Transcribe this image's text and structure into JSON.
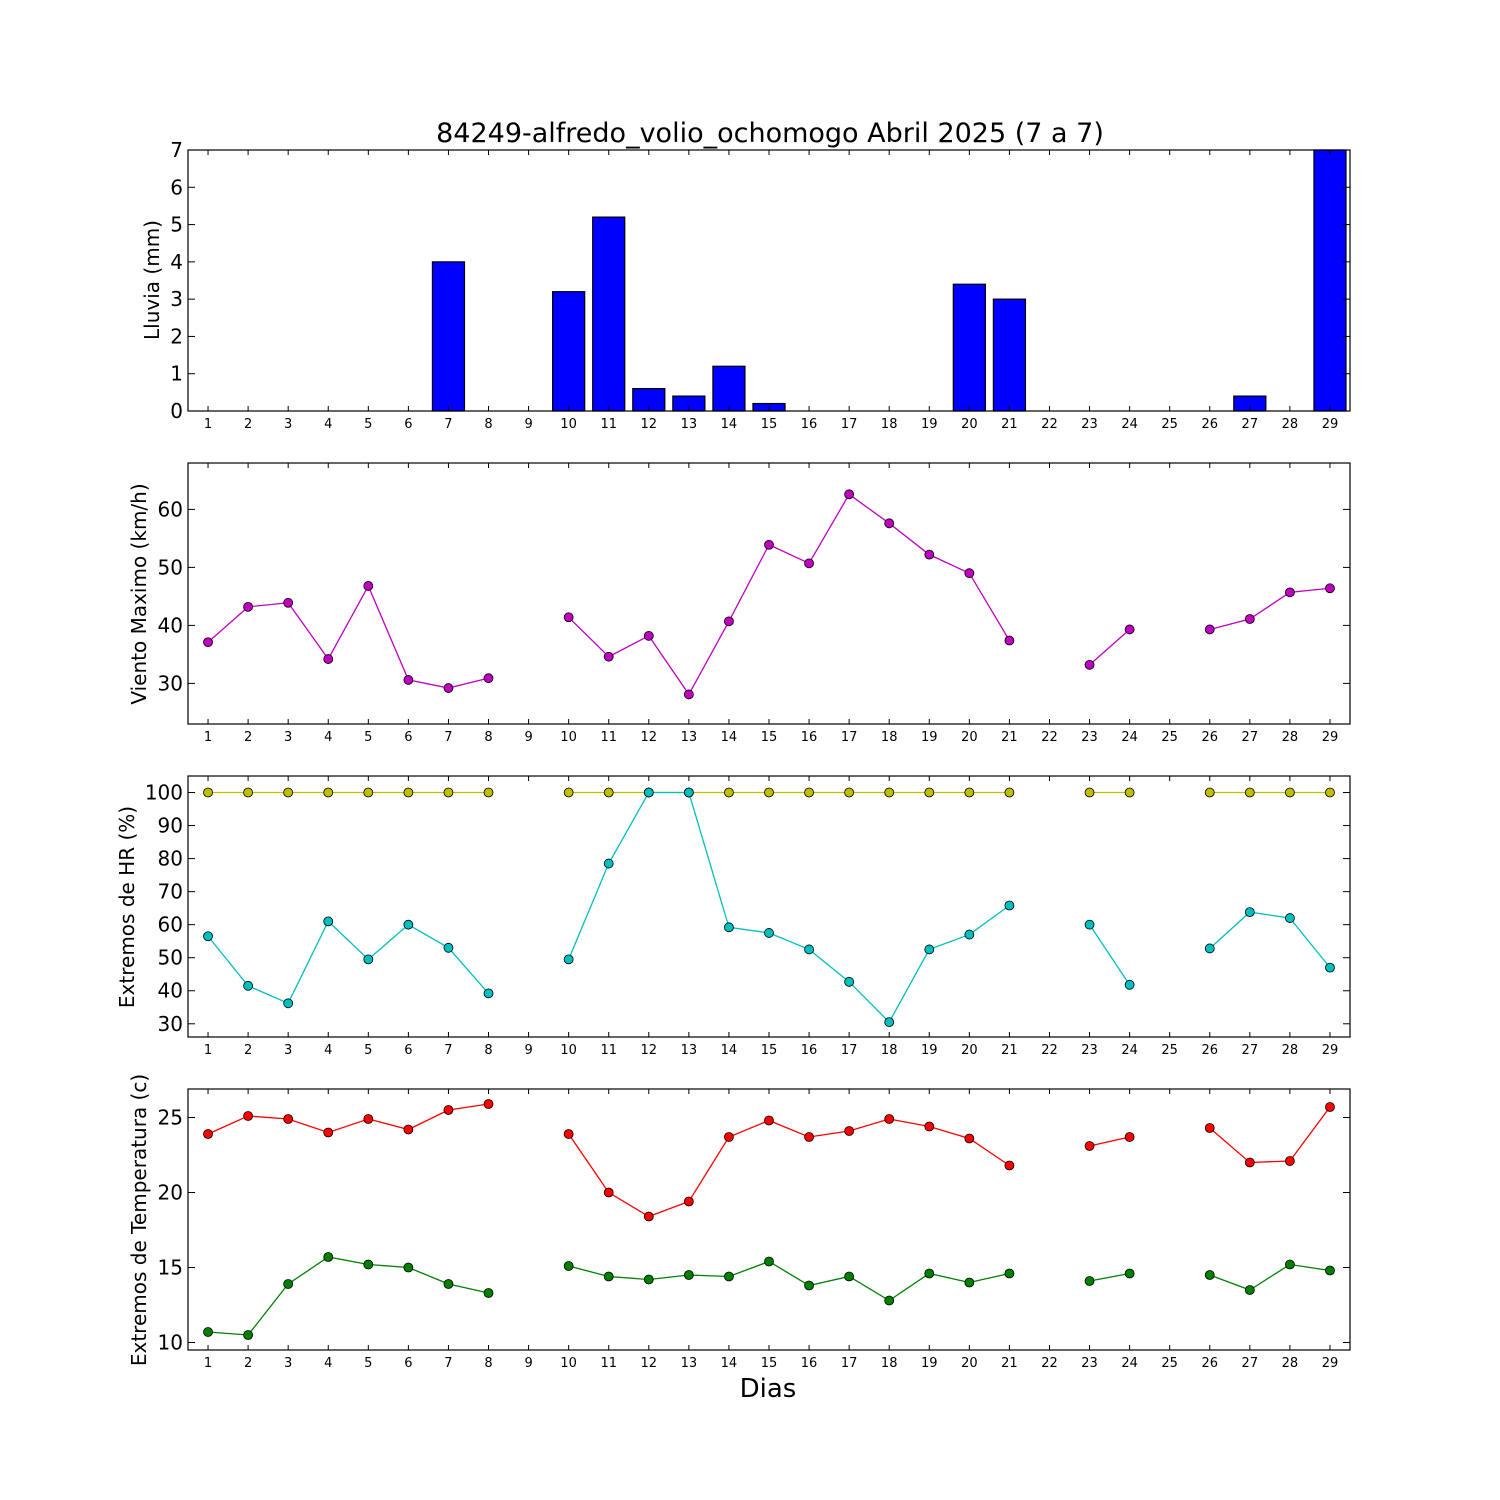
{
  "figure": {
    "title": "84249-alfredo_volio_ochomogo Abril 2025  (7 a 7)",
    "xlabel": "Dias"
  },
  "colors": {
    "rain": "#0000ff",
    "wind": "#bf00bf",
    "hr_max": "#bfbf00",
    "hr_min": "#00bfbf",
    "t_max": "#ff0000",
    "t_min": "#008000"
  },
  "chart_data": [
    {
      "type": "bar",
      "ylabel": "Lluvia (mm)",
      "categories": [
        "1",
        "2",
        "3",
        "4",
        "5",
        "6",
        "7",
        "8",
        "9",
        "10",
        "11",
        "12",
        "13",
        "14",
        "15",
        "16",
        "17",
        "18",
        "19",
        "20",
        "21",
        "22",
        "23",
        "24",
        "25",
        "26",
        "27",
        "28",
        "29"
      ],
      "x": [
        1,
        2,
        3,
        4,
        5,
        6,
        7,
        8,
        9,
        10,
        11,
        12,
        13,
        14,
        15,
        16,
        17,
        18,
        19,
        20,
        21,
        22,
        23,
        24,
        25,
        26,
        27,
        28,
        29
      ],
      "xlim": [
        0.5,
        29.5
      ],
      "ylim": [
        0,
        7
      ],
      "yticks": [
        0,
        1,
        2,
        3,
        4,
        5,
        6,
        7
      ],
      "series": [
        {
          "color": "#0000ff",
          "values": [
            0,
            0,
            0,
            0,
            0,
            0,
            4.0,
            0,
            0,
            3.2,
            5.2,
            0.6,
            0.4,
            1.2,
            0.2,
            0,
            0,
            0,
            0,
            3.4,
            3.0,
            0,
            0,
            0,
            0,
            0,
            0.4,
            0,
            7.0
          ]
        }
      ]
    },
    {
      "type": "line",
      "ylabel": "Viento Maximo (km/h)",
      "categories": [
        "1",
        "2",
        "3",
        "4",
        "5",
        "6",
        "7",
        "8",
        "9",
        "10",
        "11",
        "12",
        "13",
        "14",
        "15",
        "16",
        "17",
        "18",
        "19",
        "20",
        "21",
        "22",
        "23",
        "24",
        "25",
        "26",
        "27",
        "28",
        "29"
      ],
      "x": [
        1,
        2,
        3,
        4,
        5,
        6,
        7,
        8,
        9,
        10,
        11,
        12,
        13,
        14,
        15,
        16,
        17,
        18,
        19,
        20,
        21,
        22,
        23,
        24,
        25,
        26,
        27,
        28,
        29
      ],
      "xlim": [
        0.5,
        29.5
      ],
      "ylim": [
        23,
        68
      ],
      "yticks": [
        30,
        40,
        50,
        60
      ],
      "series": [
        {
          "color": "#bf00bf",
          "values": [
            37.1,
            43.2,
            43.9,
            34.2,
            46.8,
            30.6,
            29.2,
            30.9,
            null,
            41.4,
            34.6,
            38.2,
            28.1,
            40.7,
            53.9,
            50.7,
            62.6,
            57.6,
            52.2,
            49.0,
            37.4,
            null,
            33.2,
            39.3,
            null,
            39.3,
            41.1,
            45.7,
            46.4
          ]
        }
      ]
    },
    {
      "type": "line",
      "ylabel": "Extremos de HR (%)",
      "categories": [
        "1",
        "2",
        "3",
        "4",
        "5",
        "6",
        "7",
        "8",
        "9",
        "10",
        "11",
        "12",
        "13",
        "14",
        "15",
        "16",
        "17",
        "18",
        "19",
        "20",
        "21",
        "22",
        "23",
        "24",
        "25",
        "26",
        "27",
        "28",
        "29"
      ],
      "x": [
        1,
        2,
        3,
        4,
        5,
        6,
        7,
        8,
        9,
        10,
        11,
        12,
        13,
        14,
        15,
        16,
        17,
        18,
        19,
        20,
        21,
        22,
        23,
        24,
        25,
        26,
        27,
        28,
        29
      ],
      "xlim": [
        0.5,
        29.5
      ],
      "ylim": [
        26,
        105
      ],
      "yticks": [
        30,
        40,
        50,
        60,
        70,
        80,
        90,
        100
      ],
      "series": [
        {
          "color": "#bfbf00",
          "values": [
            100,
            100,
            100,
            100,
            100,
            100,
            100,
            100,
            null,
            100,
            100,
            100,
            100,
            100,
            100,
            100,
            100,
            100,
            100,
            100,
            100,
            null,
            100,
            100,
            null,
            100,
            100,
            100,
            100
          ]
        },
        {
          "color": "#00bfbf",
          "values": [
            56.5,
            41.5,
            36.2,
            61.0,
            49.5,
            60.0,
            53.0,
            39.2,
            null,
            49.5,
            78.5,
            100,
            100,
            59.2,
            57.5,
            52.5,
            42.7,
            30.5,
            52.5,
            57.0,
            65.8,
            null,
            60.0,
            41.8,
            null,
            52.8,
            63.8,
            62.0,
            47.0
          ]
        }
      ]
    },
    {
      "type": "line",
      "ylabel": "Extremos de Temperatura (c)",
      "categories": [
        "1",
        "2",
        "3",
        "4",
        "5",
        "6",
        "7",
        "8",
        "9",
        "10",
        "11",
        "12",
        "13",
        "14",
        "15",
        "16",
        "17",
        "18",
        "19",
        "20",
        "21",
        "22",
        "23",
        "24",
        "25",
        "26",
        "27",
        "28",
        "29"
      ],
      "x": [
        1,
        2,
        3,
        4,
        5,
        6,
        7,
        8,
        9,
        10,
        11,
        12,
        13,
        14,
        15,
        16,
        17,
        18,
        19,
        20,
        21,
        22,
        23,
        24,
        25,
        26,
        27,
        28,
        29
      ],
      "xlim": [
        0.5,
        29.5
      ],
      "ylim": [
        9.5,
        26.9
      ],
      "yticks": [
        10,
        15,
        20,
        25
      ],
      "series": [
        {
          "color": "#ff0000",
          "values": [
            23.9,
            25.1,
            24.9,
            24.0,
            24.9,
            24.2,
            25.5,
            25.9,
            null,
            23.9,
            20.0,
            18.4,
            19.4,
            23.7,
            24.8,
            23.7,
            24.1,
            24.9,
            24.4,
            23.6,
            21.8,
            null,
            23.1,
            23.7,
            null,
            24.3,
            22.0,
            22.1,
            25.7
          ]
        },
        {
          "color": "#008000",
          "values": [
            10.7,
            10.5,
            13.9,
            15.7,
            15.2,
            15.0,
            13.9,
            13.3,
            null,
            15.1,
            14.4,
            14.2,
            14.5,
            14.4,
            15.4,
            13.8,
            14.4,
            12.8,
            14.6,
            14.0,
            14.6,
            null,
            14.1,
            14.6,
            null,
            14.5,
            13.5,
            15.2,
            14.8
          ]
        }
      ]
    }
  ]
}
